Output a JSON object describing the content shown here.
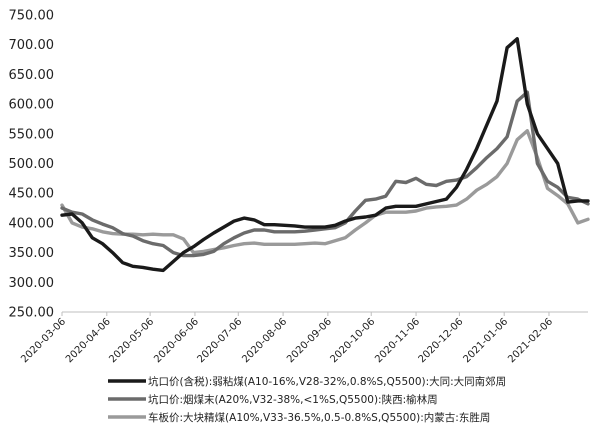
{
  "chart_data": {
    "type": "line",
    "title": "",
    "xlabel": "",
    "ylabel": "",
    "ylim": [
      250,
      750
    ],
    "yticks": [
      "250.00",
      "300.00",
      "350.00",
      "400.00",
      "450.00",
      "500.00",
      "550.00",
      "600.00",
      "650.00",
      "700.00",
      "750.00"
    ],
    "grid": false,
    "legend_position": "bottom",
    "x_tick_labels": [
      "2020-03-06",
      "2020-04-06",
      "2020-05-06",
      "2020-06-06",
      "2020-07-06",
      "2020-08-06",
      "2020-09-06",
      "2020-10-06",
      "2020-11-06",
      "2020-12-06",
      "2021-01-06",
      "2021-02-06"
    ],
    "x": [
      "2020-03-06",
      "2020-03-13",
      "2020-03-20",
      "2020-03-27",
      "2020-04-03",
      "2020-04-10",
      "2020-04-17",
      "2020-04-24",
      "2020-05-01",
      "2020-05-08",
      "2020-05-15",
      "2020-05-22",
      "2020-05-29",
      "2020-06-05",
      "2020-06-12",
      "2020-06-19",
      "2020-06-26",
      "2020-07-03",
      "2020-07-10",
      "2020-07-17",
      "2020-07-24",
      "2020-07-31",
      "2020-08-07",
      "2020-08-14",
      "2020-08-21",
      "2020-08-28",
      "2020-09-04",
      "2020-09-11",
      "2020-09-18",
      "2020-09-25",
      "2020-10-02",
      "2020-10-09",
      "2020-10-16",
      "2020-10-23",
      "2020-10-30",
      "2020-11-06",
      "2020-11-13",
      "2020-11-20",
      "2020-11-27",
      "2020-12-04",
      "2020-12-11",
      "2020-12-18",
      "2020-12-25",
      "2021-01-01",
      "2021-01-08",
      "2021-01-15",
      "2021-01-22",
      "2021-01-29",
      "2021-02-05",
      "2021-02-12",
      "2021-02-19",
      "2021-02-26",
      "2021-03-05"
    ],
    "series": [
      {
        "name": "坑口价(含税):弱粘煤(A10-16%,V28-32%,0.8%S,Q5500):大同:大同南郊周",
        "color": "#1a1a1a",
        "values": [
          413,
          415,
          400,
          375,
          365,
          350,
          333,
          327,
          325,
          322,
          320,
          335,
          350,
          360,
          372,
          383,
          393,
          403,
          408,
          405,
          397,
          397,
          396,
          395,
          393,
          393,
          393,
          396,
          403,
          408,
          410,
          413,
          425,
          428,
          428,
          428,
          432,
          436,
          440,
          460,
          490,
          525,
          565,
          605,
          695,
          710,
          600,
          550,
          525,
          500,
          435,
          437,
          437
        ]
      },
      {
        "name": "坑口价:烟煤末(A20%,V32-38%,<1%S,Q5500):陕西:榆林周",
        "color": "#6b6b6b",
        "values": [
          425,
          418,
          415,
          405,
          398,
          392,
          382,
          378,
          370,
          365,
          362,
          350,
          345,
          345,
          347,
          352,
          365,
          375,
          383,
          388,
          388,
          385,
          385,
          385,
          386,
          388,
          390,
          392,
          400,
          420,
          438,
          440,
          445,
          470,
          468,
          475,
          465,
          463,
          470,
          472,
          478,
          493,
          510,
          525,
          545,
          605,
          620,
          500,
          470,
          460,
          443,
          440,
          432
        ]
      },
      {
        "name": "车板价:大块精煤(A10%,V33-36.5%,0.5-0.8%S,Q5500):内蒙古:东胜周",
        "color": "#9a9a9a",
        "values": [
          430,
          400,
          393,
          390,
          385,
          382,
          381,
          381,
          380,
          381,
          380,
          380,
          373,
          350,
          352,
          355,
          358,
          362,
          365,
          366,
          364,
          364,
          364,
          364,
          365,
          366,
          365,
          370,
          375,
          388,
          400,
          413,
          418,
          418,
          418,
          420,
          425,
          427,
          428,
          430,
          440,
          455,
          465,
          478,
          500,
          540,
          555,
          510,
          458,
          446,
          432,
          400,
          406
        ]
      }
    ]
  }
}
